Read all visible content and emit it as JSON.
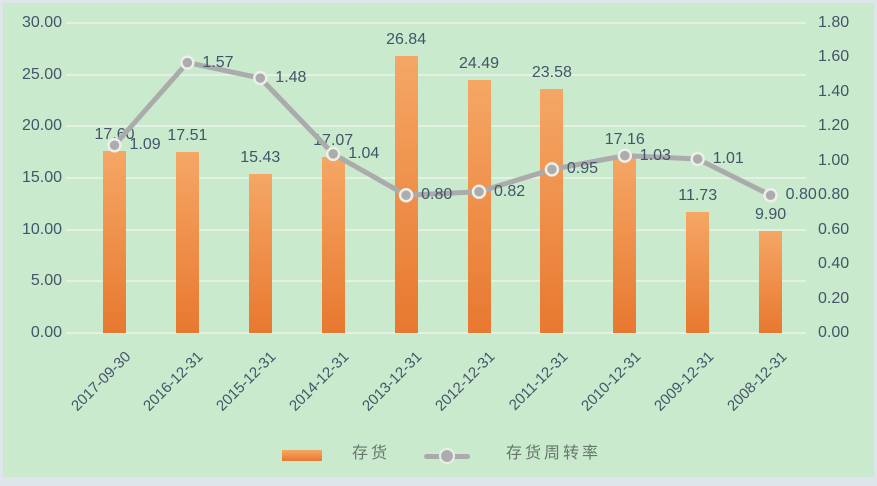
{
  "chart_data": {
    "type": "combo-bar-line",
    "categories": [
      "2017-09-30",
      "2016-12-31",
      "2015-12-31",
      "2014-12-31",
      "2013-12-31",
      "2012-12-31",
      "2011-12-31",
      "2010-12-31",
      "2009-12-31",
      "2008-12-31"
    ],
    "series": [
      {
        "name": "存货",
        "type": "bar",
        "axis": "left",
        "values": [
          17.6,
          17.51,
          15.43,
          17.07,
          26.84,
          24.49,
          23.58,
          17.16,
          11.73,
          9.9
        ],
        "data_labels": [
          "17.60",
          "17.51",
          "15.43",
          "17.07",
          "26.84",
          "24.49",
          "23.58",
          "17.16",
          "11.73",
          "9.90"
        ]
      },
      {
        "name": "存货周转率",
        "type": "line",
        "axis": "right",
        "values": [
          1.09,
          1.57,
          1.48,
          1.04,
          0.8,
          0.82,
          0.95,
          1.03,
          1.01,
          0.8
        ],
        "data_labels": [
          "1.09",
          "1.57",
          "1.48",
          "1.04",
          "0.80",
          "0.82",
          "0.95",
          "1.03",
          "1.01",
          "0.80"
        ]
      }
    ],
    "left_axis": {
      "min": 0,
      "max": 30,
      "step": 5,
      "tick_labels": [
        "30.00",
        "25.00",
        "20.00",
        "15.00",
        "10.00",
        "5.00",
        "0.00"
      ]
    },
    "right_axis": {
      "min": 0,
      "max": 1.8,
      "step": 0.2,
      "tick_labels": [
        "1.80",
        "1.60",
        "1.40",
        "1.20",
        "1.00",
        "0.80",
        "0.60",
        "0.40",
        "0.20",
        "0.00"
      ]
    },
    "legend": {
      "position": "bottom",
      "entries": [
        "存货",
        "存货周转率"
      ]
    },
    "grid": true,
    "colors": {
      "plot_background": "#C9EACD",
      "canvas": "#DFE6EB",
      "gridline": "#E4F0E2",
      "bar_top": "#F5A765",
      "bar_bottom": "#E8782F",
      "line": "#ABABAB",
      "marker": "#ACACAC",
      "marker_ring": "#ECEFEA",
      "label_text": "#44546A",
      "legend_text": "#68766E"
    }
  }
}
